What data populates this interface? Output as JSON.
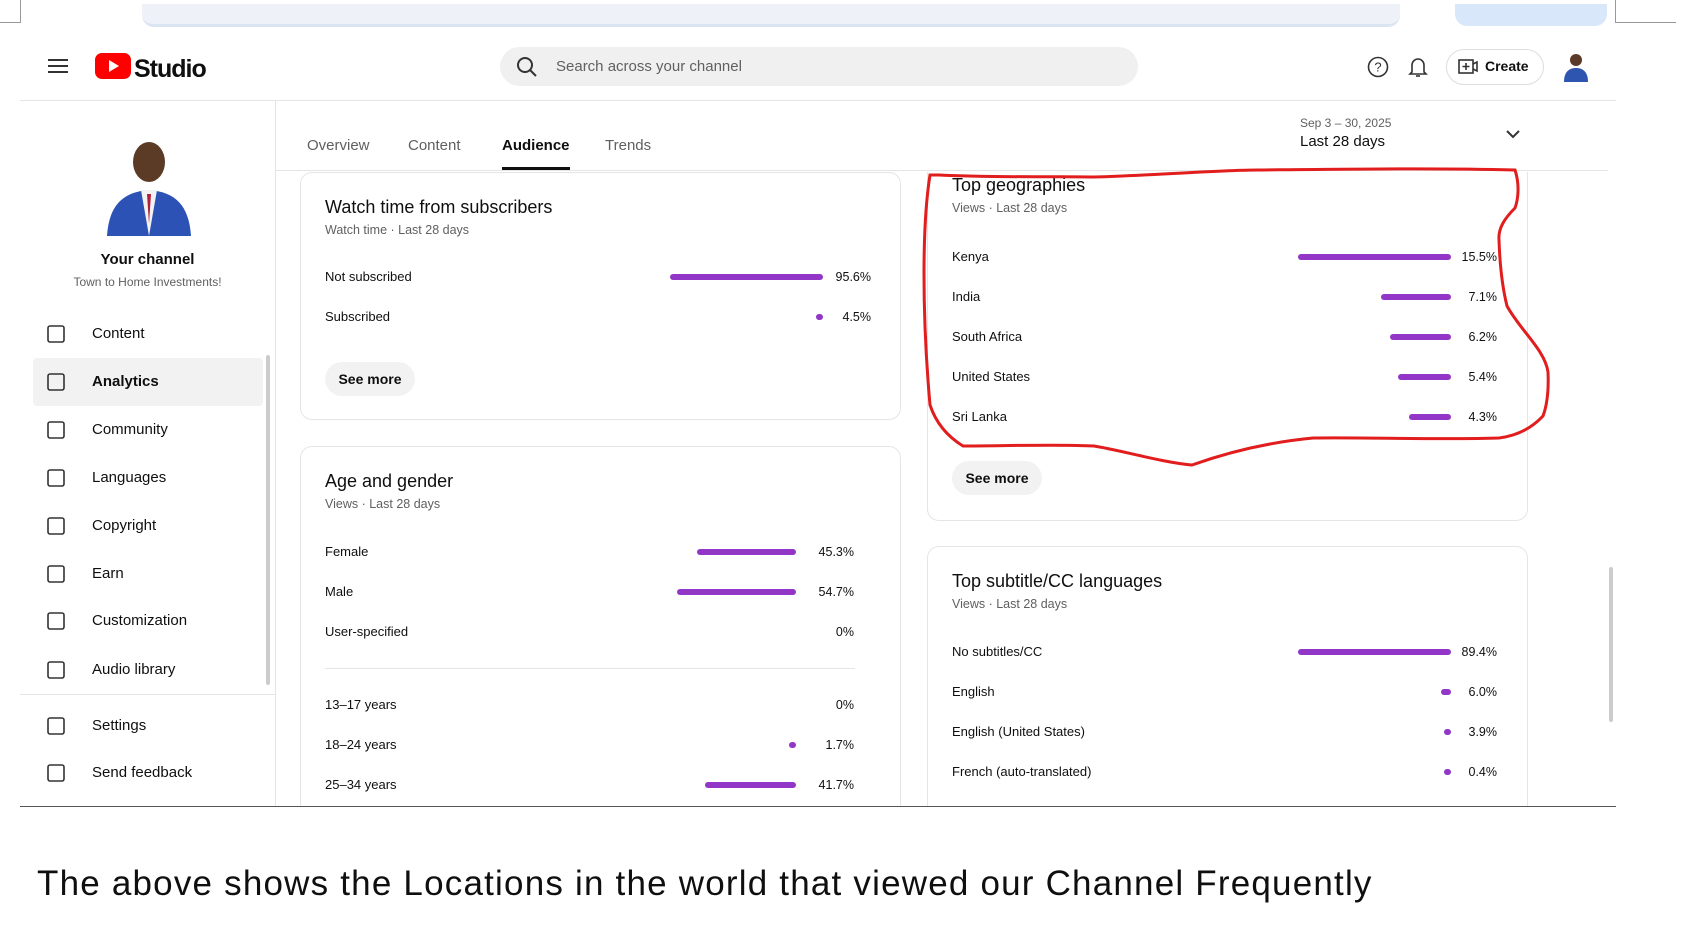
{
  "header": {
    "logo_text": "Studio",
    "search_placeholder": "Search across your channel",
    "create_button": "Create"
  },
  "sidebar": {
    "channel_name": "Your channel",
    "channel_subtitle": "Town to Home Investments!",
    "nav": [
      "Content",
      "Analytics",
      "Community",
      "Languages",
      "Copyright",
      "Earn",
      "Customization",
      "Audio library"
    ],
    "footer_nav": [
      "Settings",
      "Send feedback"
    ]
  },
  "tabs": [
    "Overview",
    "Content",
    "Audience",
    "Trends"
  ],
  "date_range": {
    "dates": "Sep 3 – 30, 2025",
    "label": "Last 28 days"
  },
  "cards": [
    {
      "title": "Watch time from subscribers",
      "subtitle": "Watch time · Last 28 days",
      "rows": [
        {
          "label": "Not subscribed",
          "value": 95.6,
          "value_label": "95.6%"
        },
        {
          "label": "Subscribed",
          "value": 4.5,
          "value_label": "4.5%"
        }
      ],
      "see_more": "See more"
    },
    {
      "title": "Age and gender",
      "subtitle": "Views · Last 28 days",
      "rows": [
        {
          "label": "Female",
          "value": 45.3,
          "value_label": "45.3%"
        },
        {
          "label": "Male",
          "value": 54.7,
          "value_label": "54.7%"
        },
        {
          "label": "User-specified",
          "value": 0,
          "value_label": "0%"
        }
      ],
      "age_rows": [
        {
          "label": "13–17 years",
          "value": 0,
          "value_label": "0%"
        },
        {
          "label": "18–24 years",
          "value": 1.7,
          "value_label": "1.7%"
        },
        {
          "label": "25–34 years",
          "value": 41.7,
          "value_label": "41.7%"
        }
      ]
    },
    {
      "title": "Top geographies",
      "subtitle": "Views · Last 28 days",
      "rows": [
        {
          "label": "Kenya",
          "value": 15.5,
          "value_label": "15.5%"
        },
        {
          "label": "India",
          "value": 7.1,
          "value_label": "7.1%"
        },
        {
          "label": "South Africa",
          "value": 6.2,
          "value_label": "6.2%"
        },
        {
          "label": "United States",
          "value": 5.4,
          "value_label": "5.4%"
        },
        {
          "label": "Sri Lanka",
          "value": 4.3,
          "value_label": "4.3%"
        }
      ],
      "see_more": "See more"
    },
    {
      "title": "Top subtitle/CC languages",
      "subtitle": "Views · Last 28 days",
      "rows": [
        {
          "label": "No subtitles/CC",
          "value": 89.4,
          "value_label": "89.4%"
        },
        {
          "label": "English",
          "value": 6.0,
          "value_label": "6.0%"
        },
        {
          "label": "English (United States)",
          "value": 3.9,
          "value_label": "3.9%"
        },
        {
          "label": "French (auto-translated)",
          "value": 0.4,
          "value_label": "0.4%"
        }
      ]
    }
  ],
  "caption": "The above shows the Locations in the world that viewed our Channel Frequently"
}
